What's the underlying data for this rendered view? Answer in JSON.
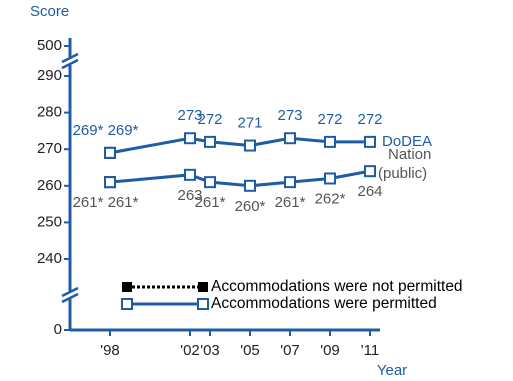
{
  "chart_data": {
    "type": "line",
    "y_label": "Score",
    "x_label": "Year",
    "x": [
      1998,
      1998,
      2002,
      2003,
      2005,
      2007,
      2009,
      2011
    ],
    "xlim": [
      1996,
      2012
    ],
    "xticks": [
      {
        "value": 1998,
        "label": "'98"
      },
      {
        "value": 2002,
        "label": "'02"
      },
      {
        "value": 2003,
        "label": "'03"
      },
      {
        "value": 2005,
        "label": "'05"
      },
      {
        "value": 2007,
        "label": "'07"
      },
      {
        "value": 2009,
        "label": "'09"
      },
      {
        "value": 2011,
        "label": "'11"
      }
    ],
    "ylim": [
      240,
      290
    ],
    "yticks": [
      0,
      240,
      250,
      260,
      270,
      280,
      290,
      500
    ],
    "axis_break": true,
    "series": [
      {
        "name": "DoDEA",
        "color": "#1f5ca6",
        "text_color": "#1f5ca6",
        "values": [
          269,
          269,
          273,
          272,
          271,
          273,
          272,
          272
        ],
        "value_labels": [
          "269*",
          "269*",
          "273",
          "272",
          "271",
          "273",
          "272",
          "272"
        ]
      },
      {
        "label_lines": [
          "Nation",
          "(public)"
        ],
        "color": "#1f5ca6",
        "text_color": "#555555",
        "values": [
          261,
          261,
          263,
          261,
          260,
          261,
          262,
          264
        ],
        "value_labels": [
          "261*",
          "261*",
          "263",
          "261*",
          "260*",
          "261*",
          "262*",
          "264"
        ]
      }
    ],
    "accommodations": [
      false,
      true,
      true,
      true,
      true,
      true,
      true,
      true
    ],
    "legend": [
      "Accommodations were not permitted",
      "Accommodations were permitted"
    ]
  }
}
